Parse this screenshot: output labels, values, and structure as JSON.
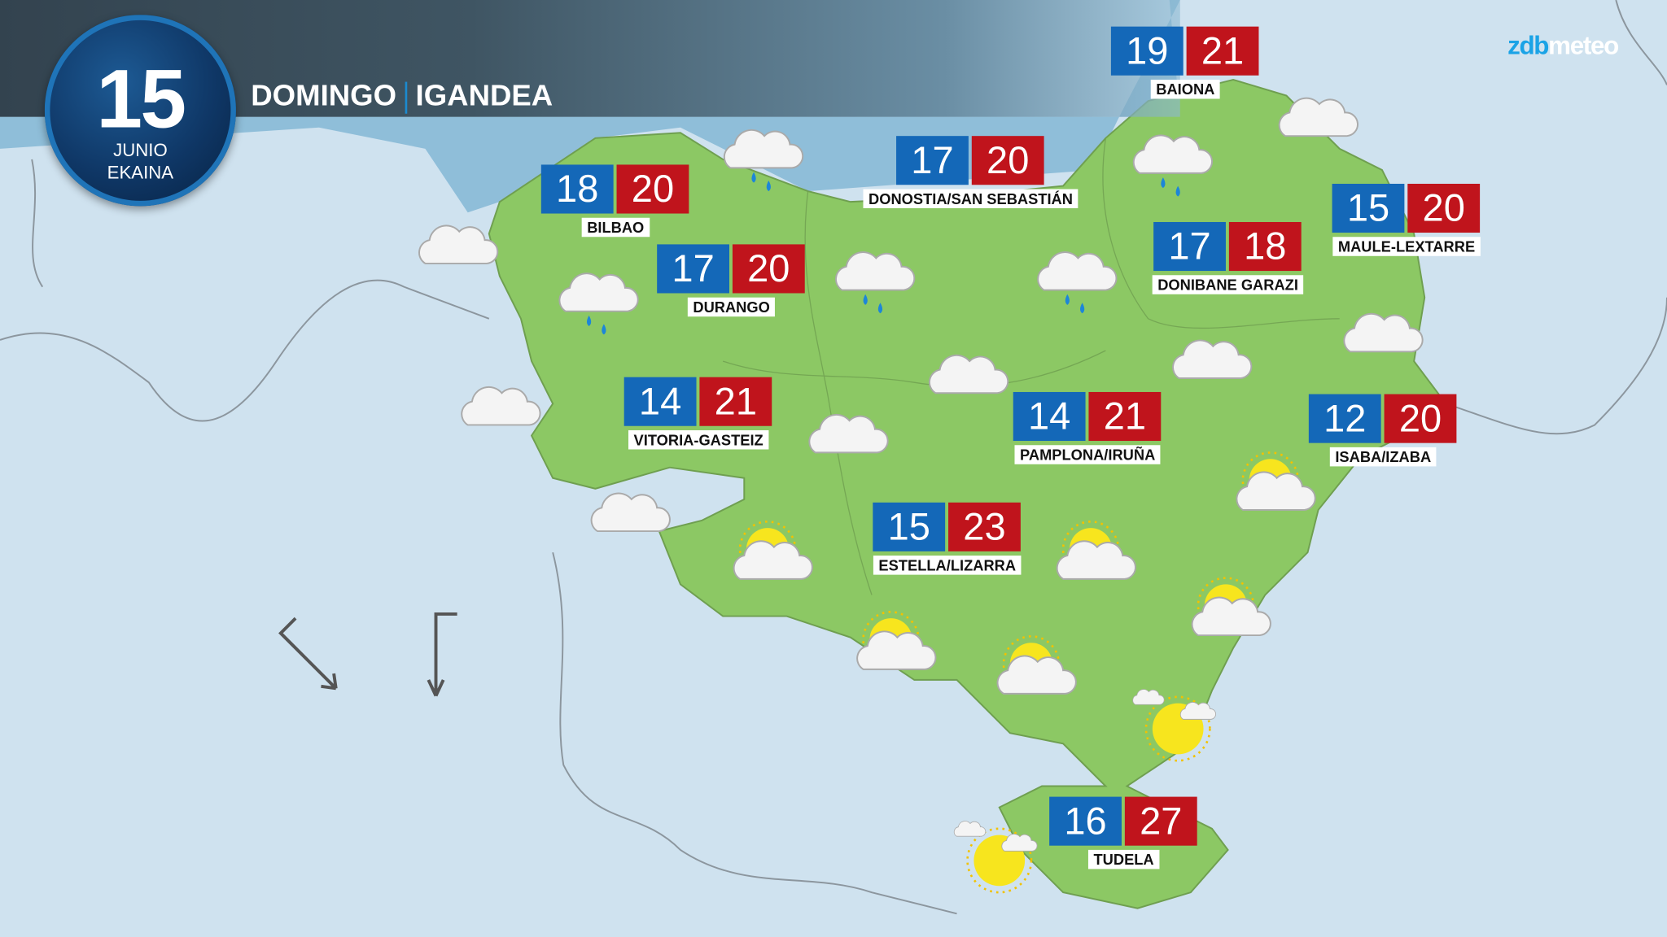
{
  "header": {
    "day": "15",
    "month_es": "JUNIO",
    "month_eu": "EKAINA",
    "weekday_es": "DOMINGO",
    "weekday_eu": "IGANDEA"
  },
  "logo": {
    "part1": "zdb",
    "part2": "meteo"
  },
  "colors": {
    "min_temp": "#1468b8",
    "max_temp": "#c0141c",
    "land": "#8cc864",
    "sea": "#8fbed9",
    "background": "#cfe2ef"
  },
  "cities": [
    {
      "name": "BAIONA",
      "min": "19",
      "max": "21"
    },
    {
      "name": "BILBAO",
      "min": "18",
      "max": "20"
    },
    {
      "name": "DONOSTIA/SAN SEBASTIÁN",
      "min": "17",
      "max": "20"
    },
    {
      "name": "MAULE-LEXTARRE",
      "min": "15",
      "max": "20"
    },
    {
      "name": "DURANGO",
      "min": "17",
      "max": "20"
    },
    {
      "name": "DONIBANE GARAZI",
      "min": "17",
      "max": "18"
    },
    {
      "name": "VITORIA-GASTEIZ",
      "min": "14",
      "max": "21"
    },
    {
      "name": "PAMPLONA/IRUÑA",
      "min": "14",
      "max": "21"
    },
    {
      "name": "ISABA/IZABA",
      "min": "12",
      "max": "20"
    },
    {
      "name": "ESTELLA/LIZARRA",
      "min": "15",
      "max": "23"
    },
    {
      "name": "TUDELA",
      "min": "16",
      "max": "27"
    }
  ],
  "weather_icons": [
    "cloud-rain",
    "cloud",
    "cloud-rain",
    "cloud-rain",
    "cloud-rain",
    "cloud-rain",
    "cloud",
    "cloud",
    "cloud",
    "cloud",
    "cloud",
    "cloud",
    "cloud",
    "sun-cloud",
    "sun-cloud",
    "sun-cloud",
    "sun-cloud",
    "sun-cloud",
    "sun-cloud",
    "sun-small-clouds",
    "sun-small-clouds"
  ],
  "wind_arrows": [
    "arrow-southeast",
    "arrow-south"
  ]
}
